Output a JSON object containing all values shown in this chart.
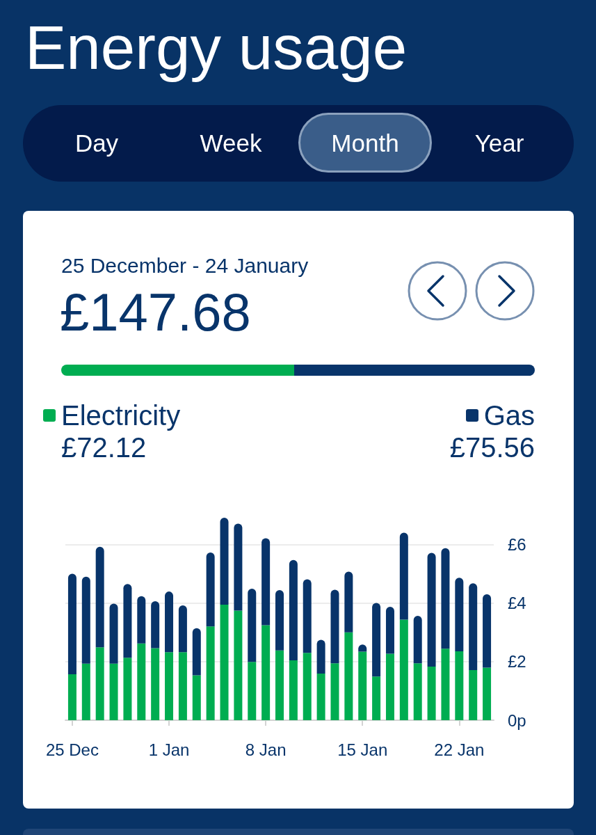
{
  "chart_data": {
    "type": "bar",
    "title": "Energy usage",
    "subtitle": "25 December - 24 January",
    "annotations": [
      "Day",
      "Week",
      "Month",
      "Year",
      "£147.68",
      "£72.12",
      "£75.56"
    ],
    "categories": [
      "25 Dec",
      null,
      null,
      null,
      null,
      null,
      null,
      "1 Jan",
      null,
      null,
      null,
      null,
      null,
      null,
      "8 Jan",
      null,
      null,
      null,
      null,
      null,
      null,
      "15 Jan",
      null,
      null,
      null,
      null,
      null,
      null,
      "22 Jan",
      null,
      null
    ],
    "series": [
      {
        "name": "Electricity",
        "color": "#00ad51",
        "values": [
          1.57,
          1.93,
          2.49,
          1.93,
          2.13,
          2.62,
          2.46,
          2.32,
          2.32,
          1.53,
          3.2,
          3.94,
          3.74,
          1.99,
          3.24,
          2.38,
          2.04,
          2.3,
          1.59,
          1.94,
          3.0,
          2.34,
          1.49,
          2.27,
          3.43,
          1.94,
          1.83,
          2.44,
          2.35,
          1.71,
          1.79
        ]
      },
      {
        "name": "Gas",
        "color": "#08346a",
        "values": [
          3.43,
          2.97,
          3.43,
          2.05,
          2.52,
          1.61,
          1.6,
          2.07,
          1.6,
          1.61,
          2.52,
          2.97,
          2.97,
          2.5,
          2.97,
          2.06,
          3.43,
          2.51,
          1.15,
          2.51,
          2.07,
          0.24,
          2.51,
          1.6,
          2.97,
          1.62,
          3.88,
          3.43,
          2.51,
          2.96,
          2.51
        ]
      }
    ],
    "stacked": true,
    "ylim": [
      0,
      6.91
    ],
    "yticks": [
      {
        "value": 0,
        "label": "0p"
      },
      {
        "value": 2,
        "label": "£2"
      },
      {
        "value": 4,
        "label": "£4"
      },
      {
        "value": 6,
        "label": "£6"
      }
    ],
    "grid": "y",
    "legend": "top"
  }
}
